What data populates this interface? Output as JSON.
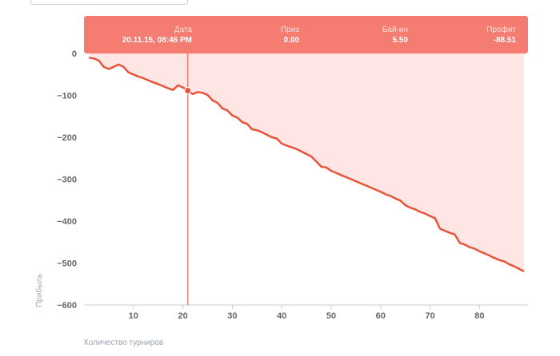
{
  "chart_data": {
    "type": "area",
    "xlabel": "Количество турниров",
    "ylabel": "Прибыль",
    "xlim": [
      0,
      90
    ],
    "ylim": [
      -600,
      0
    ],
    "x_ticks": [
      10,
      20,
      30,
      40,
      50,
      60,
      70,
      80
    ],
    "y_ticks": [
      0,
      -100,
      -200,
      -300,
      -400,
      -500,
      -600
    ],
    "y_tick_labels": [
      "0",
      "−100",
      "−200",
      "−300",
      "−400",
      "−500",
      "−600"
    ],
    "colors": {
      "line": "#e8533a",
      "fill": "#fde6e4",
      "tooltip": "#f47c70",
      "crosshair": "#e8533a"
    },
    "series": [
      {
        "x": [
          1,
          2,
          3,
          4,
          5,
          6,
          7,
          8,
          9,
          10,
          11,
          12,
          13,
          14,
          15,
          16,
          17,
          18,
          19,
          20,
          21,
          22,
          23,
          24,
          25,
          26,
          27,
          28,
          29,
          30,
          31,
          32,
          33,
          34,
          35,
          36,
          37,
          38,
          39,
          40,
          41,
          42,
          43,
          44,
          45,
          46,
          47,
          48,
          49,
          50,
          51,
          52,
          53,
          54,
          55,
          56,
          57,
          58,
          59,
          60,
          61,
          62,
          63,
          64,
          65,
          66,
          67,
          68,
          69,
          70,
          71,
          72,
          73,
          74,
          75,
          76,
          77,
          78,
          79,
          80,
          81,
          82,
          83,
          84,
          85,
          86,
          87,
          88,
          89
        ],
        "values": [
          -10,
          -12,
          -17,
          -32,
          -37,
          -32,
          -26,
          -32,
          -45,
          -50,
          -55,
          -59,
          -64,
          -69,
          -73,
          -78,
          -83,
          -87,
          -76,
          -81,
          -88.51,
          -97,
          -92,
          -94,
          -99,
          -112,
          -118,
          -131,
          -136,
          -148,
          -153,
          -164,
          -168,
          -181,
          -183,
          -188,
          -194,
          -200,
          -203,
          -215,
          -220,
          -224,
          -228,
          -234,
          -240,
          -246,
          -258,
          -270,
          -272,
          -280,
          -285,
          -290,
          -295,
          -300,
          -305,
          -310,
          -315,
          -320,
          -325,
          -330,
          -336,
          -340,
          -346,
          -351,
          -362,
          -368,
          -372,
          -378,
          -382,
          -388,
          -393,
          -418,
          -423,
          -428,
          -432,
          -452,
          -456,
          -462,
          -466,
          -472,
          -477,
          -482,
          -488,
          -493,
          -496,
          -503,
          -508,
          -514,
          -520
        ],
        "highlight_index": 20
      }
    ],
    "tooltip": {
      "headers": [
        "Дата",
        "Приз",
        "Бай-ин",
        "Профит"
      ],
      "values": [
        "20.11.15, 08:46 PM",
        "0.00",
        "5.50",
        "-88.51"
      ]
    }
  }
}
